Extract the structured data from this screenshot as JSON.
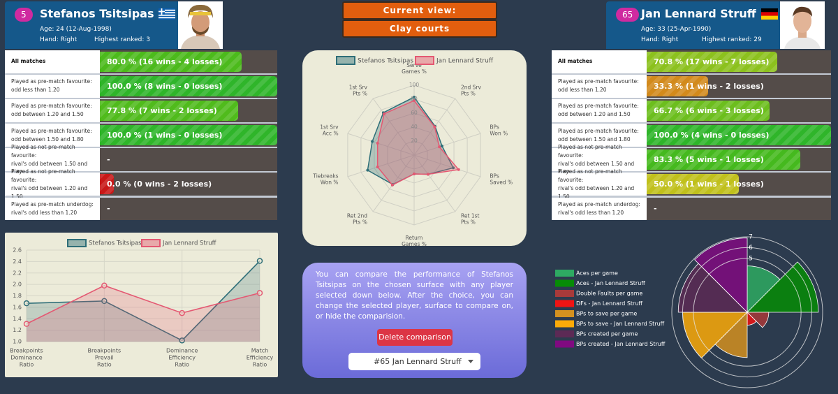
{
  "view": {
    "label": "Current view:",
    "surface": "Clay courts"
  },
  "players": [
    {
      "rank": 5,
      "name": "Stefanos Tsitsipas",
      "age": "Age: 24 (12-Aug-1998)",
      "hand": "Hand: Right",
      "highest": "Highest ranked: 3",
      "stats": [
        {
          "label": [
            "All matches"
          ],
          "value": 80.0,
          "text": "80.0 % (16 wins - 4 losses)",
          "color": "#4cba1c"
        },
        {
          "label": [
            "Played as pre-match favourite:",
            "odd less than 1.20"
          ],
          "value": 100.0,
          "text": "100.0 % (8 wins - 0 losses)",
          "color": "#2fb52a"
        },
        {
          "label": [
            "Played as pre-match favourite:",
            "odd between 1.20 and 1.50"
          ],
          "value": 77.8,
          "text": "77.8 % (7 wins - 2 losses)",
          "color": "#50bb1c"
        },
        {
          "label": [
            "Played as pre-match favourite:",
            "odd between 1.50 and 1.80"
          ],
          "value": 100.0,
          "text": "100.0 % (1 wins - 0 losses)",
          "color": "#2fb52a"
        },
        {
          "label": [
            "Played as not pre-match favourite:",
            "rival's odd between 1.50 and 1.80"
          ],
          "value": null,
          "text": "-"
        },
        {
          "label": [
            "Played as not pre-match favourite:",
            "rival's odd between 1.20 and 1.50"
          ],
          "value": 0.0,
          "text": "0.0 % (0 wins - 2 losses)",
          "color": "#c81818"
        },
        {
          "label": [
            "Played as pre-match underdog:",
            "rival's odd less than 1.20"
          ],
          "value": null,
          "text": "-"
        }
      ]
    },
    {
      "rank": 65,
      "name": "Jan Lennard Struff",
      "age": "Age: 33 (25-Apr-1990)",
      "hand": "Hand: Right",
      "highest": "Highest ranked: 29",
      "stats": [
        {
          "label": [
            "All matches"
          ],
          "value": 70.8,
          "text": "70.8 % (17 wins - 7 losses)",
          "color": "#8cc11e"
        },
        {
          "label": [
            "Played as pre-match favourite:",
            "odd less than 1.20"
          ],
          "value": 33.3,
          "text": "33.3 % (1 wins - 2 losses)",
          "color": "#d28a1c"
        },
        {
          "label": [
            "Played as pre-match favourite:",
            "odd between 1.20 and 1.50"
          ],
          "value": 66.7,
          "text": "66.7 % (6 wins - 3 losses)",
          "color": "#6cbe1e"
        },
        {
          "label": [
            "Played as pre-match favourite:",
            "odd between 1.50 and 1.80"
          ],
          "value": 100.0,
          "text": "100.0 % (4 wins - 0 losses)",
          "color": "#2fb52a"
        },
        {
          "label": [
            "Played as not pre-match favourite:",
            "rival's odd between 1.50 and 1.80"
          ],
          "value": 83.3,
          "text": "83.3 % (5 wins - 1 losses)",
          "color": "#45b91e"
        },
        {
          "label": [
            "Played as not pre-match favourite:",
            "rival's odd between 1.20 and 1.50"
          ],
          "value": 50.0,
          "text": "50.0 % (1 wins - 1 losses)",
          "color": "#c0c01c"
        },
        {
          "label": [
            "Played as pre-match underdog:",
            "rival's odd less than 1.20"
          ],
          "value": null,
          "text": "-"
        }
      ]
    }
  ],
  "radar_chart": {
    "type": "radar",
    "axes": [
      [
        "Serve",
        "Games %"
      ],
      [
        "2nd Srv",
        "Pts %"
      ],
      [
        "BPs",
        "Won %"
      ],
      [
        "BPs",
        "Saved %"
      ],
      [
        "Ret 1st",
        "Pts %"
      ],
      [
        "Return",
        "Games %"
      ],
      [
        "Ret 2nd",
        "Pts %"
      ],
      [
        "Tiebreaks",
        "Won %"
      ],
      [
        "1st Srv",
        "Acc %"
      ],
      [
        "1st Srv",
        "Pts %"
      ]
    ],
    "rlim": [
      0,
      100
    ],
    "rticks": [
      20,
      40,
      60,
      80,
      100
    ],
    "series": [
      {
        "name": "Stefanos Tsitsipas",
        "color": "#2e6e78",
        "values": [
          83,
          51,
          42,
          59,
          34,
          27,
          52,
          70,
          63,
          75
        ]
      },
      {
        "name": "Jan Lennard Struff",
        "color": "#e45872",
        "values": [
          78,
          50,
          38,
          67,
          34,
          27,
          53,
          55,
          55,
          73
        ]
      }
    ]
  },
  "line_chart": {
    "type": "line",
    "categories": [
      [
        "Breakpoints",
        "Dominance",
        "Ratio"
      ],
      [
        "Breakpoints",
        "Prevail",
        "Ratio"
      ],
      [
        "Dominance",
        "Efficiency",
        "Ratio"
      ],
      [
        "Match",
        "Efficiency",
        "Ratio"
      ]
    ],
    "ylim": [
      1,
      2.6
    ],
    "yticks": [
      {
        "value": 1,
        "label": "1.0"
      },
      1.2,
      1.4,
      1.6,
      1.8,
      {
        "value": 2,
        "label": "2.0"
      },
      2.2,
      2.4,
      2.6
    ],
    "grid": true,
    "series": [
      {
        "name": "Stefanos Tsitsipas",
        "color": "#2e6e78",
        "values": [
          1.67,
          1.71,
          1.02,
          2.41
        ]
      },
      {
        "name": "Jan Lennard Struff",
        "color": "#e45872",
        "values": [
          1.31,
          1.98,
          1.5,
          1.85
        ]
      }
    ]
  },
  "info": {
    "text": "You can compare the performance of Stefanos Tsitsipas on the chosen surface with any player selected down below. After the choice, you can change the selected player, surface to compare on, or hide the comparision.",
    "button": "Delete comparison",
    "select": "#65 Jan Lennard Struff"
  },
  "polar_chart": {
    "type": "polarArea",
    "categories": [
      "Aces per game",
      "Aces - Jan Lennard Struff",
      "Double Faults per game",
      "DFs - Jan Lennard Struff",
      "BPs to save per game",
      "BPs to save - Jan Lennard Struff",
      "BPs created per game",
      "BPs created - Jan Lennard Struff"
    ],
    "colors": [
      "#2eaa62",
      "#068c06",
      "#a83a3a",
      "#f01414",
      "#d49120",
      "#fbaa08",
      "#5c2a55",
      "#800a80"
    ],
    "values": [
      4.3,
      6.6,
      2.0,
      1.2,
      4.2,
      6.0,
      6.4,
      6.9
    ],
    "rlim": [
      0,
      7
    ],
    "rticks": [
      5,
      6,
      7
    ]
  }
}
